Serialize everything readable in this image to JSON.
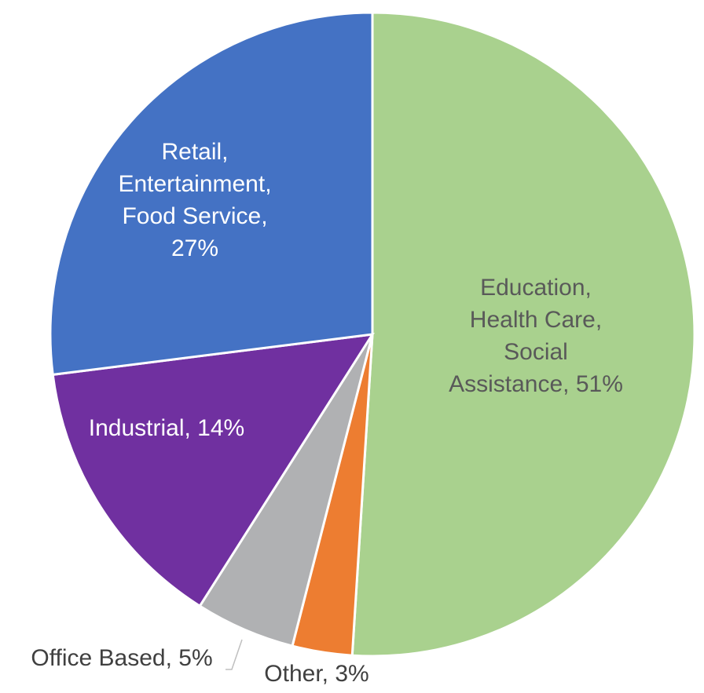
{
  "chart_data": {
    "type": "pie",
    "labels": [
      [
        "Education,",
        "Health Care,",
        "Social",
        "Assistance, 51%"
      ],
      [
        "Other, 3%"
      ],
      [
        "Office Based, 5%"
      ],
      [
        "Industrial, 14%"
      ],
      [
        "Retail,",
        "Entertainment,",
        "Food Service,",
        "27%"
      ]
    ],
    "values": [
      51,
      3,
      5,
      14,
      27
    ],
    "colors": [
      "#a9d18e",
      "#ed7d31",
      "#b0b1b3",
      "#7030a0",
      "#4472c4"
    ],
    "label_colors": [
      "#595959",
      "#404040",
      "#404040",
      "#ffffff",
      "#ffffff"
    ]
  }
}
